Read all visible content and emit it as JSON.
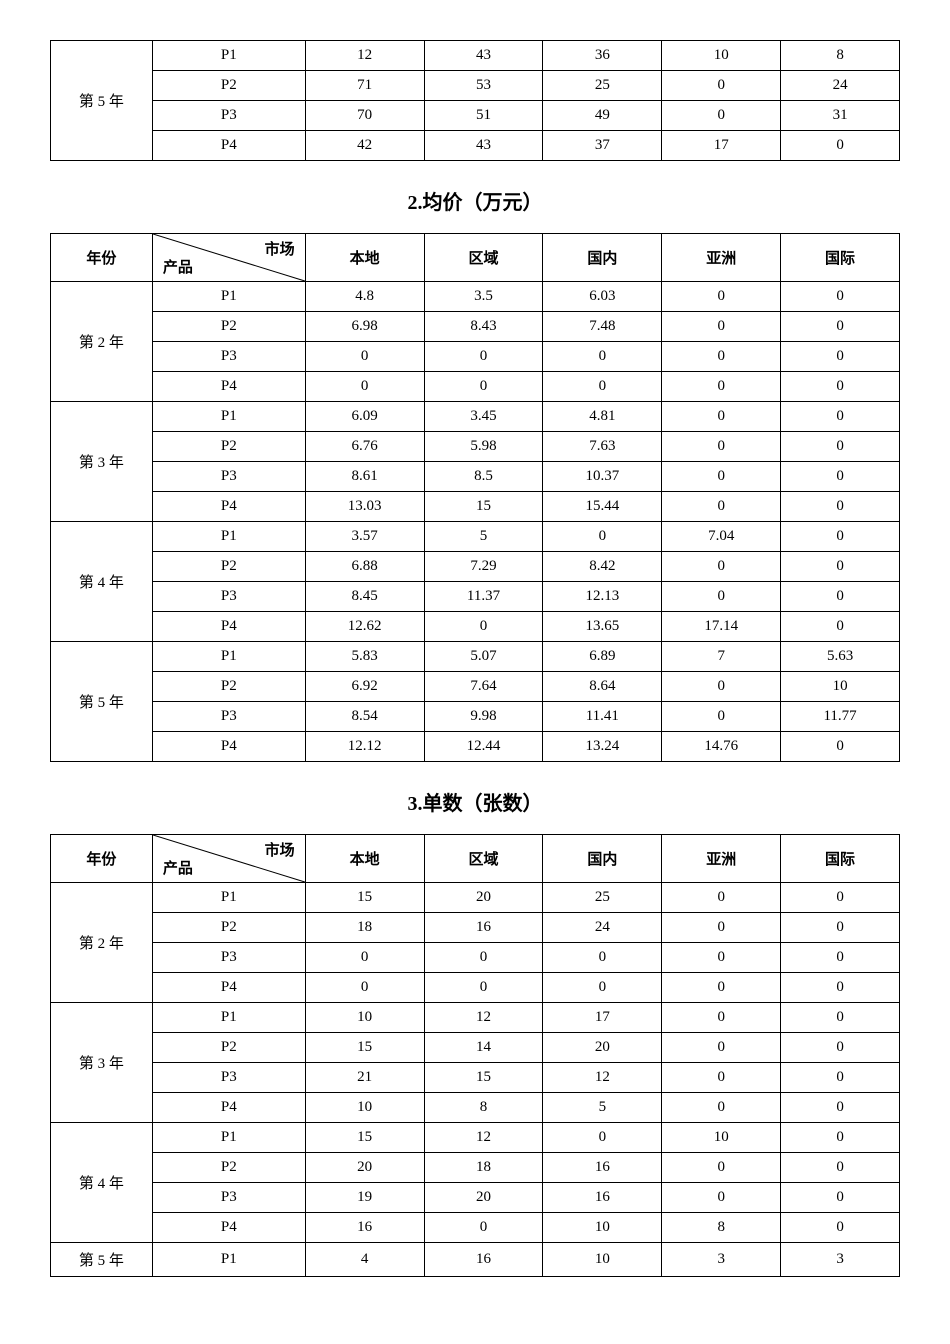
{
  "table1": {
    "year": "第 5 年",
    "rows": [
      {
        "product": "P1",
        "values": [
          "12",
          "43",
          "36",
          "10",
          "8"
        ]
      },
      {
        "product": "P2",
        "values": [
          "71",
          "53",
          "25",
          "0",
          "24"
        ]
      },
      {
        "product": "P3",
        "values": [
          "70",
          "51",
          "49",
          "0",
          "31"
        ]
      },
      {
        "product": "P4",
        "values": [
          "42",
          "43",
          "37",
          "17",
          "0"
        ]
      }
    ]
  },
  "section2_title": "2.均价（万元）",
  "table2": {
    "header": {
      "year": "年份",
      "diag_top": "市场",
      "diag_bottom": "产品",
      "cols": [
        "本地",
        "区域",
        "国内",
        "亚洲",
        "国际"
      ]
    },
    "groups": [
      {
        "year": "第 2 年",
        "rows": [
          {
            "product": "P1",
            "values": [
              "4.8",
              "3.5",
              "6.03",
              "0",
              "0"
            ]
          },
          {
            "product": "P2",
            "values": [
              "6.98",
              "8.43",
              "7.48",
              "0",
              "0"
            ]
          },
          {
            "product": "P3",
            "values": [
              "0",
              "0",
              "0",
              "0",
              "0"
            ]
          },
          {
            "product": "P4",
            "values": [
              "0",
              "0",
              "0",
              "0",
              "0"
            ]
          }
        ]
      },
      {
        "year": "第 3 年",
        "rows": [
          {
            "product": "P1",
            "values": [
              "6.09",
              "3.45",
              "4.81",
              "0",
              "0"
            ]
          },
          {
            "product": "P2",
            "values": [
              "6.76",
              "5.98",
              "7.63",
              "0",
              "0"
            ]
          },
          {
            "product": "P3",
            "values": [
              "8.61",
              "8.5",
              "10.37",
              "0",
              "0"
            ]
          },
          {
            "product": "P4",
            "values": [
              "13.03",
              "15",
              "15.44",
              "0",
              "0"
            ]
          }
        ]
      },
      {
        "year": "第 4 年",
        "rows": [
          {
            "product": "P1",
            "values": [
              "3.57",
              "5",
              "0",
              "7.04",
              "0"
            ]
          },
          {
            "product": "P2",
            "values": [
              "6.88",
              "7.29",
              "8.42",
              "0",
              "0"
            ]
          },
          {
            "product": "P3",
            "values": [
              "8.45",
              "11.37",
              "12.13",
              "0",
              "0"
            ]
          },
          {
            "product": "P4",
            "values": [
              "12.62",
              "0",
              "13.65",
              "17.14",
              "0"
            ]
          }
        ]
      },
      {
        "year": "第 5 年",
        "rows": [
          {
            "product": "P1",
            "values": [
              "5.83",
              "5.07",
              "6.89",
              "7",
              "5.63"
            ]
          },
          {
            "product": "P2",
            "values": [
              "6.92",
              "7.64",
              "8.64",
              "0",
              "10"
            ]
          },
          {
            "product": "P3",
            "values": [
              "8.54",
              "9.98",
              "11.41",
              "0",
              "11.77"
            ]
          },
          {
            "product": "P4",
            "values": [
              "12.12",
              "12.44",
              "13.24",
              "14.76",
              "0"
            ]
          }
        ]
      }
    ]
  },
  "section3_title": "3.单数（张数）",
  "table3": {
    "header": {
      "year": "年份",
      "diag_top": "市场",
      "diag_bottom": "产品",
      "cols": [
        "本地",
        "区域",
        "国内",
        "亚洲",
        "国际"
      ]
    },
    "groups": [
      {
        "year": "第 2 年",
        "rows": [
          {
            "product": "P1",
            "values": [
              "15",
              "20",
              "25",
              "0",
              "0"
            ]
          },
          {
            "product": "P2",
            "values": [
              "18",
              "16",
              "24",
              "0",
              "0"
            ]
          },
          {
            "product": "P3",
            "values": [
              "0",
              "0",
              "0",
              "0",
              "0"
            ]
          },
          {
            "product": "P4",
            "values": [
              "0",
              "0",
              "0",
              "0",
              "0"
            ]
          }
        ]
      },
      {
        "year": "第 3 年",
        "rows": [
          {
            "product": "P1",
            "values": [
              "10",
              "12",
              "17",
              "0",
              "0"
            ]
          },
          {
            "product": "P2",
            "values": [
              "15",
              "14",
              "20",
              "0",
              "0"
            ]
          },
          {
            "product": "P3",
            "values": [
              "21",
              "15",
              "12",
              "0",
              "0"
            ]
          },
          {
            "product": "P4",
            "values": [
              "10",
              "8",
              "5",
              "0",
              "0"
            ]
          }
        ]
      },
      {
        "year": "第 4 年",
        "rows": [
          {
            "product": "P1",
            "values": [
              "15",
              "12",
              "0",
              "10",
              "0"
            ]
          },
          {
            "product": "P2",
            "values": [
              "20",
              "18",
              "16",
              "0",
              "0"
            ]
          },
          {
            "product": "P3",
            "values": [
              "19",
              "20",
              "16",
              "0",
              "0"
            ]
          },
          {
            "product": "P4",
            "values": [
              "16",
              "0",
              "10",
              "8",
              "0"
            ]
          }
        ]
      },
      {
        "year": "第 5 年",
        "single_row": {
          "product": "P1",
          "values": [
            "4",
            "16",
            "10",
            "3",
            "3"
          ]
        }
      }
    ]
  }
}
